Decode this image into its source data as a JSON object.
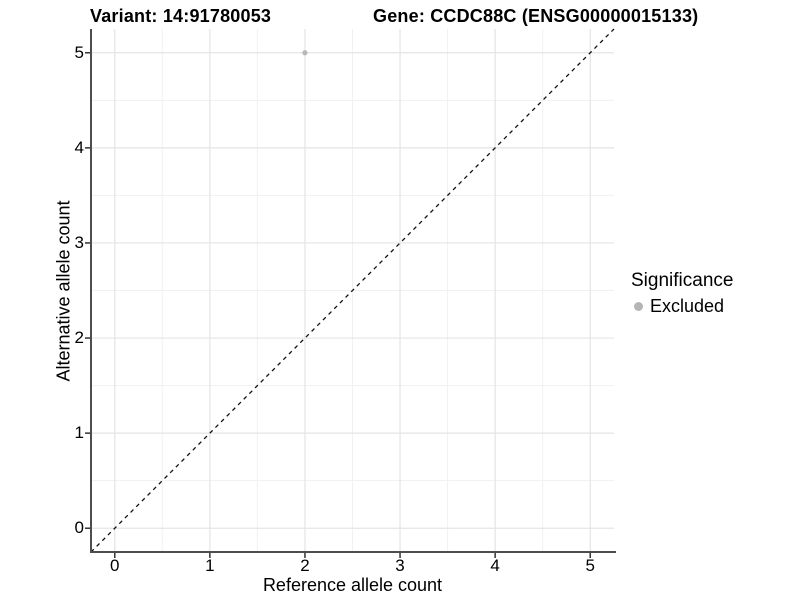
{
  "header": {
    "variant_title": "Variant: 14:91780053",
    "gene_title": "Gene: CCDC88C (ENSG00000015133)"
  },
  "chart_data": {
    "type": "scatter",
    "title_left": "Variant: 14:91780053",
    "title_right": "Gene: CCDC88C (ENSG00000015133)",
    "xlabel": "Reference allele count",
    "ylabel": "Alternative allele count",
    "xlim": [
      -0.25,
      5.25
    ],
    "ylim": [
      -0.25,
      5.25
    ],
    "x_ticks": [
      0,
      1,
      2,
      3,
      4,
      5
    ],
    "y_ticks": [
      0,
      1,
      2,
      3,
      4,
      5
    ],
    "minor_ticks": [
      0.5,
      1.5,
      2.5,
      3.5,
      4.5
    ],
    "grid": true,
    "series": [
      {
        "name": "Excluded",
        "color": "#b8b8b8",
        "marker": "circle",
        "points": [
          {
            "x": 2,
            "y": 5
          }
        ]
      }
    ],
    "reference_line": {
      "type": "identity",
      "slope": 1,
      "intercept": 0,
      "style": "dashed",
      "color": "#111111"
    },
    "legend": {
      "title": "Significance",
      "position": "right",
      "items": [
        {
          "label": "Excluded",
          "color": "#b5b5b5",
          "marker": "circle"
        }
      ]
    },
    "colors": {
      "major_grid": "#e4e4e4",
      "minor_grid": "#f1f1f1",
      "axis_line": "#4d4d4d",
      "tick_mark": "#333333",
      "background": "#ffffff"
    }
  }
}
